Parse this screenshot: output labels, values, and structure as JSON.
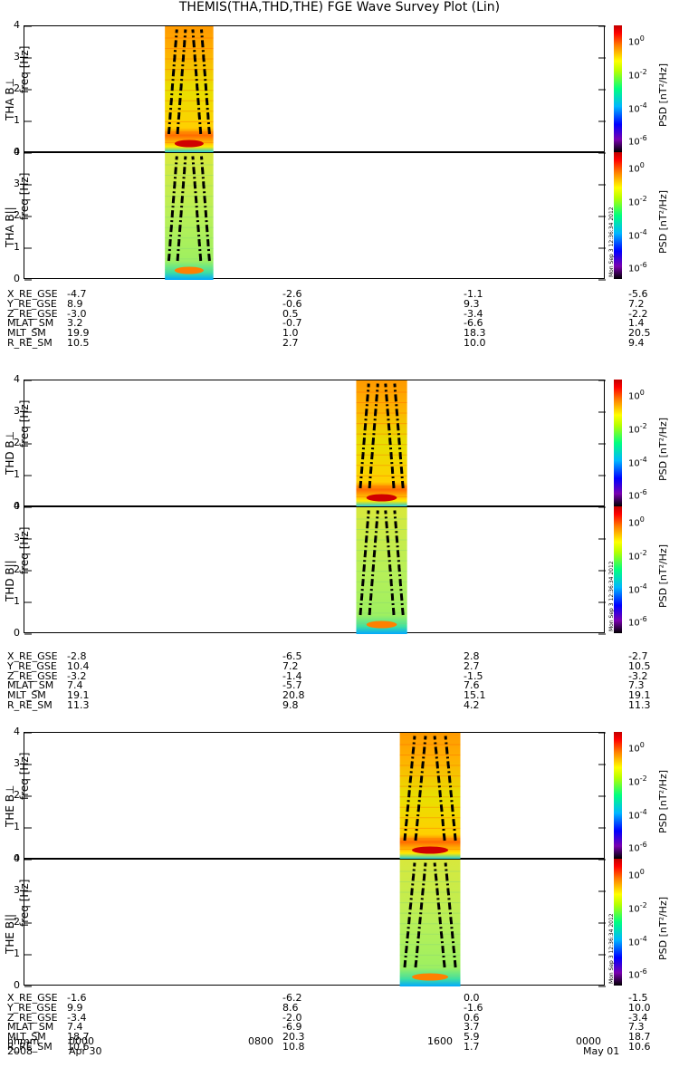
{
  "title": "THEMIS(THA,THD,THE) FGE Wave Survey Plot (Lin)",
  "colorbar": {
    "label": "PSD [nT²/Hz]",
    "ticks": [
      "10^0",
      "10^-2",
      "10^-4",
      "10^-6"
    ],
    "timestamp": "Mon Sep 3 12:36:34 2012"
  },
  "panels": [
    {
      "ylabel": "THA B⊥",
      "unit": "freq [Hz]",
      "yticks": [
        "4",
        "3",
        "2",
        "1",
        "0"
      ]
    },
    {
      "ylabel": "THA B||",
      "unit": "freq [Hz]",
      "yticks": [
        "4",
        "3",
        "2",
        "1",
        "0"
      ]
    },
    {
      "ylabel": "THD B⊥",
      "unit": "freq [Hz]",
      "yticks": [
        "4",
        "3",
        "2",
        "1",
        "0"
      ]
    },
    {
      "ylabel": "THD B||",
      "unit": "freq [Hz]",
      "yticks": [
        "4",
        "3",
        "2",
        "1",
        "0"
      ]
    },
    {
      "ylabel": "THE B⊥",
      "unit": "freq [Hz]",
      "yticks": [
        "4",
        "3",
        "2",
        "1",
        "0"
      ]
    },
    {
      "ylabel": "THE B||",
      "unit": "freq [Hz]",
      "yticks": [
        "4",
        "3",
        "2",
        "1",
        "0"
      ]
    }
  ],
  "ephemeris": [
    {
      "rows": [
        [
          "X_RE_GSE",
          "-4.7",
          "-2.6",
          "-1.1",
          "-5.6"
        ],
        [
          "Y_RE_GSE",
          "8.9",
          "-0.6",
          "9.3",
          "7.2"
        ],
        [
          "Z_RE_GSE",
          "-3.0",
          "0.5",
          "-3.4",
          "-2.2"
        ],
        [
          "MLAT_SM",
          "3.2",
          "-0.7",
          "-6.6",
          "1.4"
        ],
        [
          "MLT_SM",
          "19.9",
          "1.0",
          "18.3",
          "20.5"
        ],
        [
          "R_RE_SM",
          "10.5",
          "2.7",
          "10.0",
          "9.4"
        ]
      ]
    },
    {
      "rows": [
        [
          "X_RE_GSE",
          "-2.8",
          "-6.5",
          "2.8",
          "-2.7"
        ],
        [
          "Y_RE_GSE",
          "10.4",
          "7.2",
          "2.7",
          "10.5"
        ],
        [
          "Z_RE_GSE",
          "-3.2",
          "-1.4",
          "-1.5",
          "-3.2"
        ],
        [
          "MLAT_SM",
          "7.4",
          "-5.7",
          "7.6",
          "7.3"
        ],
        [
          "MLT_SM",
          "19.1",
          "20.8",
          "15.1",
          "19.1"
        ],
        [
          "R_RE_SM",
          "11.3",
          "9.8",
          "4.2",
          "11.3"
        ]
      ]
    },
    {
      "rows": [
        [
          "X_RE_GSE",
          "-1.6",
          "-6.2",
          "0.0",
          "-1.5"
        ],
        [
          "Y_RE_GSE",
          "9.9",
          "8.6",
          "-1.6",
          "10.0"
        ],
        [
          "Z_RE_GSE",
          "-3.4",
          "-2.0",
          "0.6",
          "-3.4"
        ],
        [
          "MLAT_SM",
          "7.4",
          "-6.9",
          "3.7",
          "7.3"
        ],
        [
          "MLT_SM",
          "18.7",
          "20.3",
          "5.9",
          "18.7"
        ],
        [
          "R_RE_SM",
          "10.6",
          "10.8",
          "1.7",
          "10.6"
        ]
      ]
    }
  ],
  "timeaxis": {
    "hhmm_label": "hhmm",
    "ticks": [
      "0000",
      "0800",
      "1600",
      "0000"
    ],
    "year": "2008",
    "start_date": "Apr 30",
    "end_date": "May 01"
  },
  "chart_data": {
    "type": "heatmap",
    "title": "THEMIS(THA,THD,THE) FGE Wave Survey Plot (Lin)",
    "xlabel": "hhmm",
    "xlim_hours": [
      0,
      24
    ],
    "ylabel": "freq [Hz]",
    "ylim": [
      0,
      4
    ],
    "zlabel": "PSD [nT^2/Hz]",
    "zlim": [
      1e-06,
      10
    ],
    "zscale": "log",
    "data_intervals_hours": [
      {
        "probe": "THA",
        "start": 5.8,
        "end": 7.8
      },
      {
        "probe": "THD",
        "start": 13.7,
        "end": 15.8
      },
      {
        "probe": "THE",
        "start": 15.5,
        "end": 18.0
      }
    ]
  }
}
